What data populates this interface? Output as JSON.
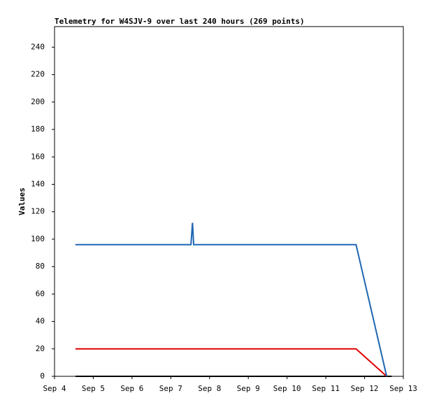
{
  "chart_data": {
    "type": "line",
    "title": "Telemetry for W4SJV-9 over last 240 hours (269 points)",
    "y_label": "Values",
    "xlim": [
      4,
      13
    ],
    "xticks": [
      {
        "value": 4,
        "label": "Sep 4"
      },
      {
        "value": 5,
        "label": "Sep 5"
      },
      {
        "value": 6,
        "label": "Sep 6"
      },
      {
        "value": 7,
        "label": "Sep 7"
      },
      {
        "value": 8,
        "label": "Sep 8"
      },
      {
        "value": 9,
        "label": "Sep 9"
      },
      {
        "value": 10,
        "label": "Sep 10"
      },
      {
        "value": 11,
        "label": "Sep 11"
      },
      {
        "value": 12,
        "label": "Sep 12"
      },
      {
        "value": 13,
        "label": "Sep 13"
      }
    ],
    "ylim": [
      0,
      255
    ],
    "yticks": [
      0,
      20,
      40,
      60,
      80,
      100,
      120,
      140,
      160,
      180,
      200,
      220,
      240
    ],
    "grid": false,
    "series": [
      {
        "color": "#000000",
        "x": [
          4.54,
          12.7
        ],
        "values": [
          0,
          0
        ]
      },
      {
        "color": "#e00000",
        "x": [
          4.54,
          11.78,
          12.57
        ],
        "values": [
          20,
          20,
          0
        ]
      },
      {
        "color": "#1f66b3",
        "x": [
          4.54,
          7.52,
          7.56,
          7.59,
          11.78,
          12.57
        ],
        "values": [
          96,
          96,
          112,
          96,
          96,
          0
        ]
      }
    ]
  }
}
